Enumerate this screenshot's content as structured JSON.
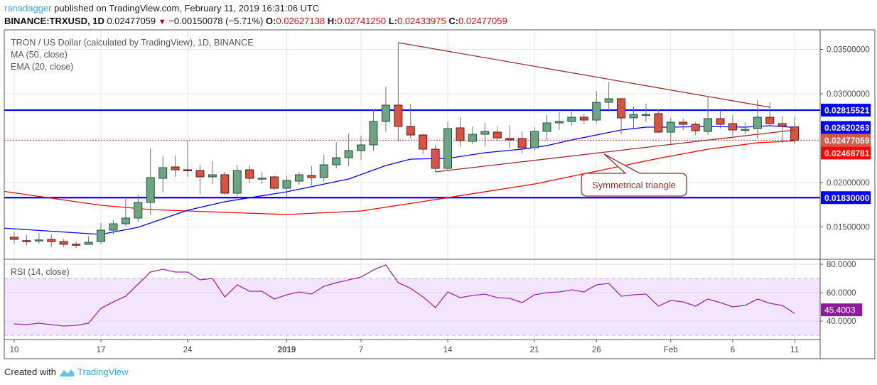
{
  "header": {
    "user": "ranadagger",
    "published": "published on TradingView.com, February 11, 2019 16:31:06 UTC",
    "symbol": "BINANCE:TRXUSD, 1D",
    "last": "0.02477059",
    "change": "−0.00150078 (−5.71%)",
    "o_label": "O:",
    "o": "0.02627138",
    "h_label": "H:",
    "h": "0.02741250",
    "l_label": "L:",
    "l": "0.02433975",
    "c_label": "C:",
    "c": "0.02477059",
    "direction_icon": "triangle-down-icon"
  },
  "legend": {
    "title": "TRON / US Dollar (calculated by TradingView), 1D, BINANCE",
    "ma": "MA (50, close)",
    "ema": "EMA (20, close)",
    "rsi": "RSI (14, close)"
  },
  "footer": {
    "created_with": "Created with",
    "brand": "TradingView",
    "logo_icon": "tradingview-logo-icon"
  },
  "colors": {
    "up": "#6ba583",
    "up_border": "#225437",
    "down": "#d75442",
    "down_border": "#5b1a13",
    "ma": "#ff0000",
    "ema": "#0000ff",
    "levels": "#0000ff",
    "trendline": "#9b2d2d",
    "rsi": "#9c27b0",
    "rsi_band": "#f3e5fd",
    "label_current": "#d35a4a"
  },
  "chart_data": {
    "type": "candlestick",
    "price_axis": {
      "ylim": [
        0.0125,
        0.037
      ],
      "ticks": [
        "0.03500000",
        "0.03000000",
        "0.02000000",
        "0.01500000"
      ],
      "tick_values": [
        0.035,
        0.03,
        0.02,
        0.015
      ],
      "grid_values": [
        0.035,
        0.03,
        0.025,
        0.02,
        0.015
      ]
    },
    "time_axis": {
      "ticks": [
        {
          "date": "2018-12-10",
          "label": "10"
        },
        {
          "date": "2018-12-17",
          "label": "17"
        },
        {
          "date": "2018-12-24",
          "label": "24"
        },
        {
          "date": "2019-01-01",
          "label": "2019",
          "bold": true
        },
        {
          "date": "2019-01-07",
          "label": "7"
        },
        {
          "date": "2019-01-14",
          "label": "14"
        },
        {
          "date": "2019-01-21",
          "label": "21"
        },
        {
          "date": "2019-01-26",
          "label": "26"
        },
        {
          "date": "2019-02-01",
          "label": "Feb"
        },
        {
          "date": "2019-02-06",
          "label": "6"
        },
        {
          "date": "2019-02-11",
          "label": "11"
        }
      ]
    },
    "grid": true,
    "candles_columns": [
      "date",
      "open",
      "high",
      "low",
      "close"
    ],
    "candles": [
      [
        "2018-12-10",
        0.01384,
        0.0144,
        0.01304,
        0.0136
      ],
      [
        "2018-12-11",
        0.01346,
        0.01408,
        0.01296,
        0.01342
      ],
      [
        "2018-12-12",
        0.0135,
        0.01432,
        0.01312,
        0.01354
      ],
      [
        "2018-12-13",
        0.0136,
        0.01416,
        0.01272,
        0.01336
      ],
      [
        "2018-12-14",
        0.01336,
        0.01368,
        0.01272,
        0.01304
      ],
      [
        "2018-12-15",
        0.01306,
        0.01336,
        0.01264,
        0.01304
      ],
      [
        "2018-12-16",
        0.01304,
        0.01392,
        0.01304,
        0.01328
      ],
      [
        "2018-12-17",
        0.01336,
        0.01544,
        0.01304,
        0.01464
      ],
      [
        "2018-12-18",
        0.01464,
        0.01576,
        0.01416,
        0.01536
      ],
      [
        "2018-12-19",
        0.01536,
        0.01816,
        0.01512,
        0.016
      ],
      [
        "2018-12-20",
        0.016,
        0.01864,
        0.0156,
        0.01776
      ],
      [
        "2018-12-21",
        0.01776,
        0.02384,
        0.0164,
        0.02056
      ],
      [
        "2018-12-22",
        0.02048,
        0.02296,
        0.01888,
        0.02168
      ],
      [
        "2018-12-23",
        0.02176,
        0.02304,
        0.02064,
        0.02144
      ],
      [
        "2018-12-24",
        0.02144,
        0.02472,
        0.02064,
        0.02136
      ],
      [
        "2018-12-25",
        0.02136,
        0.022,
        0.01872,
        0.02064
      ],
      [
        "2018-12-26",
        0.02064,
        0.0224,
        0.01984,
        0.02088
      ],
      [
        "2018-12-27",
        0.02088,
        0.0212,
        0.01864,
        0.0188
      ],
      [
        "2018-12-28",
        0.0188,
        0.022,
        0.01832,
        0.02136
      ],
      [
        "2018-12-29",
        0.02144,
        0.02192,
        0.01992,
        0.02048
      ],
      [
        "2018-12-30",
        0.02046,
        0.0212,
        0.01984,
        0.0205
      ],
      [
        "2018-12-31",
        0.02064,
        0.0208,
        0.01912,
        0.01936
      ],
      [
        "2019-01-01",
        0.01936,
        0.0208,
        0.01832,
        0.02024
      ],
      [
        "2019-01-02",
        0.02016,
        0.0212,
        0.01976,
        0.02088
      ],
      [
        "2019-01-03",
        0.0208,
        0.02184,
        0.01968,
        0.02056
      ],
      [
        "2019-01-04",
        0.02056,
        0.02312,
        0.02008,
        0.022
      ],
      [
        "2019-01-05",
        0.022,
        0.02456,
        0.0216,
        0.0228
      ],
      [
        "2019-01-06",
        0.0228,
        0.02552,
        0.02184,
        0.0236
      ],
      [
        "2019-01-07",
        0.0236,
        0.02528,
        0.02256,
        0.02424
      ],
      [
        "2019-01-08",
        0.02424,
        0.02824,
        0.0236,
        0.02688
      ],
      [
        "2019-01-09",
        0.02688,
        0.0308,
        0.02576,
        0.02872
      ],
      [
        "2019-01-10",
        0.02872,
        0.03576,
        0.02464,
        0.02632
      ],
      [
        "2019-01-11",
        0.02632,
        0.0288,
        0.02496,
        0.02536
      ],
      [
        "2019-01-12",
        0.02536,
        0.02552,
        0.0232,
        0.02376
      ],
      [
        "2019-01-13",
        0.02376,
        0.02424,
        0.0212,
        0.0216
      ],
      [
        "2019-01-14",
        0.0216,
        0.02688,
        0.02136,
        0.02608
      ],
      [
        "2019-01-15",
        0.02616,
        0.02736,
        0.024,
        0.02472
      ],
      [
        "2019-01-16",
        0.02464,
        0.02632,
        0.02432,
        0.02544
      ],
      [
        "2019-01-17",
        0.02544,
        0.02672,
        0.02408,
        0.02576
      ],
      [
        "2019-01-18",
        0.02568,
        0.02632,
        0.0248,
        0.02504
      ],
      [
        "2019-01-19",
        0.02496,
        0.02648,
        0.02392,
        0.0248
      ],
      [
        "2019-01-20",
        0.02496,
        0.02576,
        0.0232,
        0.02392
      ],
      [
        "2019-01-21",
        0.02392,
        0.02624,
        0.02368,
        0.02576
      ],
      [
        "2019-01-22",
        0.02576,
        0.0276,
        0.0248,
        0.02672
      ],
      [
        "2019-01-23",
        0.02672,
        0.02792,
        0.02592,
        0.02688
      ],
      [
        "2019-01-24",
        0.02688,
        0.028,
        0.0264,
        0.02736
      ],
      [
        "2019-01-25",
        0.02736,
        0.02768,
        0.02656,
        0.02704
      ],
      [
        "2019-01-26",
        0.02704,
        0.03032,
        0.02672,
        0.02904
      ],
      [
        "2019-01-27",
        0.02904,
        0.03128,
        0.028,
        0.02944
      ],
      [
        "2019-01-28",
        0.02944,
        0.02952,
        0.02544,
        0.02728
      ],
      [
        "2019-01-29",
        0.02728,
        0.02856,
        0.02616,
        0.02768
      ],
      [
        "2019-01-30",
        0.02766,
        0.02888,
        0.0268,
        0.02768
      ],
      [
        "2019-01-31",
        0.02776,
        0.02824,
        0.0256,
        0.02568
      ],
      [
        "2019-02-01",
        0.02568,
        0.02728,
        0.02432,
        0.0268
      ],
      [
        "2019-02-02",
        0.0268,
        0.0272,
        0.02592,
        0.02656
      ],
      [
        "2019-02-03",
        0.02656,
        0.0268,
        0.02536,
        0.02584
      ],
      [
        "2019-02-04",
        0.02576,
        0.0296,
        0.02536,
        0.0272
      ],
      [
        "2019-02-05",
        0.0272,
        0.02832,
        0.02608,
        0.02656
      ],
      [
        "2019-02-06",
        0.02664,
        0.0276,
        0.02528,
        0.02592
      ],
      [
        "2019-02-07",
        0.02598,
        0.0268,
        0.02544,
        0.026
      ],
      [
        "2019-02-08",
        0.02608,
        0.02928,
        0.02496,
        0.02736
      ],
      [
        "2019-02-09",
        0.02736,
        0.02904,
        0.02632,
        0.02664
      ],
      [
        "2019-02-10",
        0.02664,
        0.02752,
        0.02448,
        0.02632
      ],
      [
        "2019-02-11",
        0.02627138,
        0.0274125,
        0.02433975,
        0.02477059
      ]
    ],
    "ma50": [
      [
        "2018-12-09",
        0.01904
      ],
      [
        "2018-12-17",
        0.01744
      ],
      [
        "2018-12-21",
        0.01696
      ],
      [
        "2018-12-24",
        0.0168
      ],
      [
        "2019-01-01",
        0.0164
      ],
      [
        "2019-01-07",
        0.0168
      ],
      [
        "2019-01-10",
        0.01744
      ],
      [
        "2019-01-13",
        0.01808
      ],
      [
        "2019-01-21",
        0.01984
      ],
      [
        "2019-01-26",
        0.02128
      ],
      [
        "2019-01-31",
        0.02272
      ],
      [
        "2019-02-04",
        0.02376
      ],
      [
        "2019-02-08",
        0.02448
      ],
      [
        "2019-02-11",
        0.02468781
      ]
    ],
    "ema20": [
      [
        "2018-12-09",
        0.01488
      ],
      [
        "2018-12-17",
        0.01416
      ],
      [
        "2018-12-20",
        0.01496
      ],
      [
        "2018-12-24",
        0.01688
      ],
      [
        "2018-12-27",
        0.01784
      ],
      [
        "2019-01-01",
        0.01896
      ],
      [
        "2019-01-06",
        0.0204
      ],
      [
        "2019-01-09",
        0.02192
      ],
      [
        "2019-01-11",
        0.02264
      ],
      [
        "2019-01-14",
        0.02272
      ],
      [
        "2019-01-17",
        0.02336
      ],
      [
        "2019-01-20",
        0.02376
      ],
      [
        "2019-01-22",
        0.02416
      ],
      [
        "2019-01-24",
        0.0248
      ],
      [
        "2019-01-26",
        0.02536
      ],
      [
        "2019-01-28",
        0.02592
      ],
      [
        "2019-01-30",
        0.02624
      ],
      [
        "2019-02-01",
        0.02624
      ],
      [
        "2019-02-04",
        0.02632
      ],
      [
        "2019-02-07",
        0.02624
      ],
      [
        "2019-02-09",
        0.0264
      ],
      [
        "2019-02-11",
        0.02620263
      ]
    ],
    "horizontal_levels": [
      0.02815521,
      0.0183
    ],
    "trendlines": [
      {
        "from": [
          "2019-01-10",
          0.03576
        ],
        "to": [
          "2019-02-09",
          0.02848
        ]
      },
      {
        "from": [
          "2019-01-13",
          0.0212
        ],
        "to": [
          "2019-02-11",
          0.02592
        ]
      }
    ],
    "annotation": {
      "text": "Symmetrical triangle",
      "target": [
        "2019-01-26",
        0.02336
      ]
    },
    "price_labels": [
      {
        "text": "0.02815521",
        "value": 0.02815521,
        "color": "#0000ff"
      },
      {
        "text": "0.02620263",
        "value": 0.02620263,
        "color": "#0000ff"
      },
      {
        "text": "0.02477059",
        "value": 0.02477059,
        "color": "#d35a4a"
      },
      {
        "text": "0.02468781",
        "value": 0.02468781,
        "color": "#ff0000"
      },
      {
        "text": "0.01830000",
        "value": 0.0183,
        "color": "#0000ff"
      }
    ],
    "rsi": {
      "ylim": [
        25,
        83
      ],
      "band": [
        30,
        70
      ],
      "ticks": [
        "80.0000",
        "60.0000",
        "40.0000"
      ],
      "tick_values": [
        80,
        60,
        40
      ],
      "last_label": "45.4003",
      "values": [
        38,
        37.5,
        38.5,
        37.5,
        36.5,
        37,
        38.5,
        49,
        53.5,
        57.5,
        66,
        74.5,
        76.5,
        74.5,
        74.5,
        69,
        70,
        57,
        65.5,
        61,
        61,
        55.5,
        58.5,
        60.5,
        59,
        64.5,
        67,
        69,
        71,
        76,
        79.5,
        67,
        63,
        57,
        49.5,
        60.5,
        56.5,
        58,
        59,
        56.5,
        56,
        53,
        58.5,
        60,
        60.5,
        62,
        60.5,
        65.5,
        66.5,
        57.5,
        58.5,
        59,
        50.5,
        54.5,
        53.5,
        50.5,
        55.5,
        53,
        50,
        51,
        55.5,
        52.5,
        51,
        45.4003
      ]
    }
  }
}
